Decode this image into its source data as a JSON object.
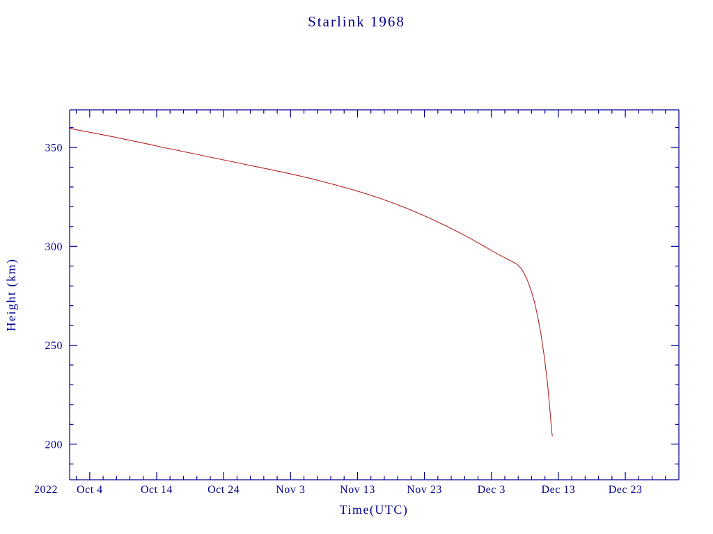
{
  "chart_data": {
    "type": "line",
    "title": "Starlink 1968",
    "xlabel": "Time(UTC)",
    "ylabel": "Height (km)",
    "x_year_label": "2022",
    "x_axis_unit": "days since 2022 Oct 1",
    "x_range_days": [
      0,
      91
    ],
    "ylim": [
      182,
      369
    ],
    "grid": false,
    "legend": "none",
    "axis_color": "#000090",
    "line_color": "#b22222",
    "background_color": "#ffffff",
    "x_major_ticks": [
      {
        "day": 3,
        "label": "Oct 4"
      },
      {
        "day": 13,
        "label": "Oct 14"
      },
      {
        "day": 23,
        "label": "Oct 24"
      },
      {
        "day": 33,
        "label": "Nov 3"
      },
      {
        "day": 43,
        "label": "Nov 13"
      },
      {
        "day": 53,
        "label": "Nov 23"
      },
      {
        "day": 63,
        "label": "Dec 3"
      },
      {
        "day": 73,
        "label": "Dec 13"
      },
      {
        "day": 83,
        "label": "Dec 23"
      }
    ],
    "x_minor_step_days": 2,
    "y_major_ticks": [
      200,
      250,
      300,
      350
    ],
    "y_minor_step": 10,
    "series": [
      {
        "name": "Starlink 1968 orbital height (km)",
        "points": [
          [
            0,
            359.6
          ],
          [
            2,
            358.3
          ],
          [
            4,
            357.0
          ],
          [
            6,
            355.7
          ],
          [
            8,
            354.3
          ],
          [
            10,
            352.9
          ],
          [
            12,
            351.5
          ],
          [
            14,
            350.0
          ],
          [
            16,
            348.6
          ],
          [
            18,
            347.2
          ],
          [
            20,
            345.8
          ],
          [
            22,
            344.4
          ],
          [
            24,
            343.0
          ],
          [
            26,
            341.6
          ],
          [
            28,
            340.2
          ],
          [
            30,
            338.8
          ],
          [
            32,
            337.4
          ],
          [
            34,
            335.9
          ],
          [
            36,
            334.3
          ],
          [
            38,
            332.6
          ],
          [
            40,
            330.8
          ],
          [
            42,
            328.9
          ],
          [
            44,
            326.9
          ],
          [
            46,
            324.7
          ],
          [
            48,
            322.3
          ],
          [
            50,
            319.7
          ],
          [
            52,
            316.9
          ],
          [
            54,
            313.9
          ],
          [
            56,
            310.7
          ],
          [
            58,
            307.3
          ],
          [
            60,
            303.7
          ],
          [
            62,
            299.9
          ],
          [
            63,
            297.9
          ],
          [
            64,
            296.0
          ],
          [
            65,
            294.2
          ],
          [
            66,
            292.5
          ],
          [
            66.8,
            291.0
          ],
          [
            67.4,
            289.0
          ],
          [
            67.9,
            286.2
          ],
          [
            68.4,
            282.6
          ],
          [
            68.9,
            278.0
          ],
          [
            69.4,
            272.2
          ],
          [
            69.9,
            264.8
          ],
          [
            70.4,
            255.6
          ],
          [
            70.9,
            244.2
          ],
          [
            71.4,
            230.2
          ],
          [
            71.8,
            214.8
          ],
          [
            72,
            206.5
          ],
          [
            72.1,
            204.0
          ]
        ]
      }
    ]
  }
}
